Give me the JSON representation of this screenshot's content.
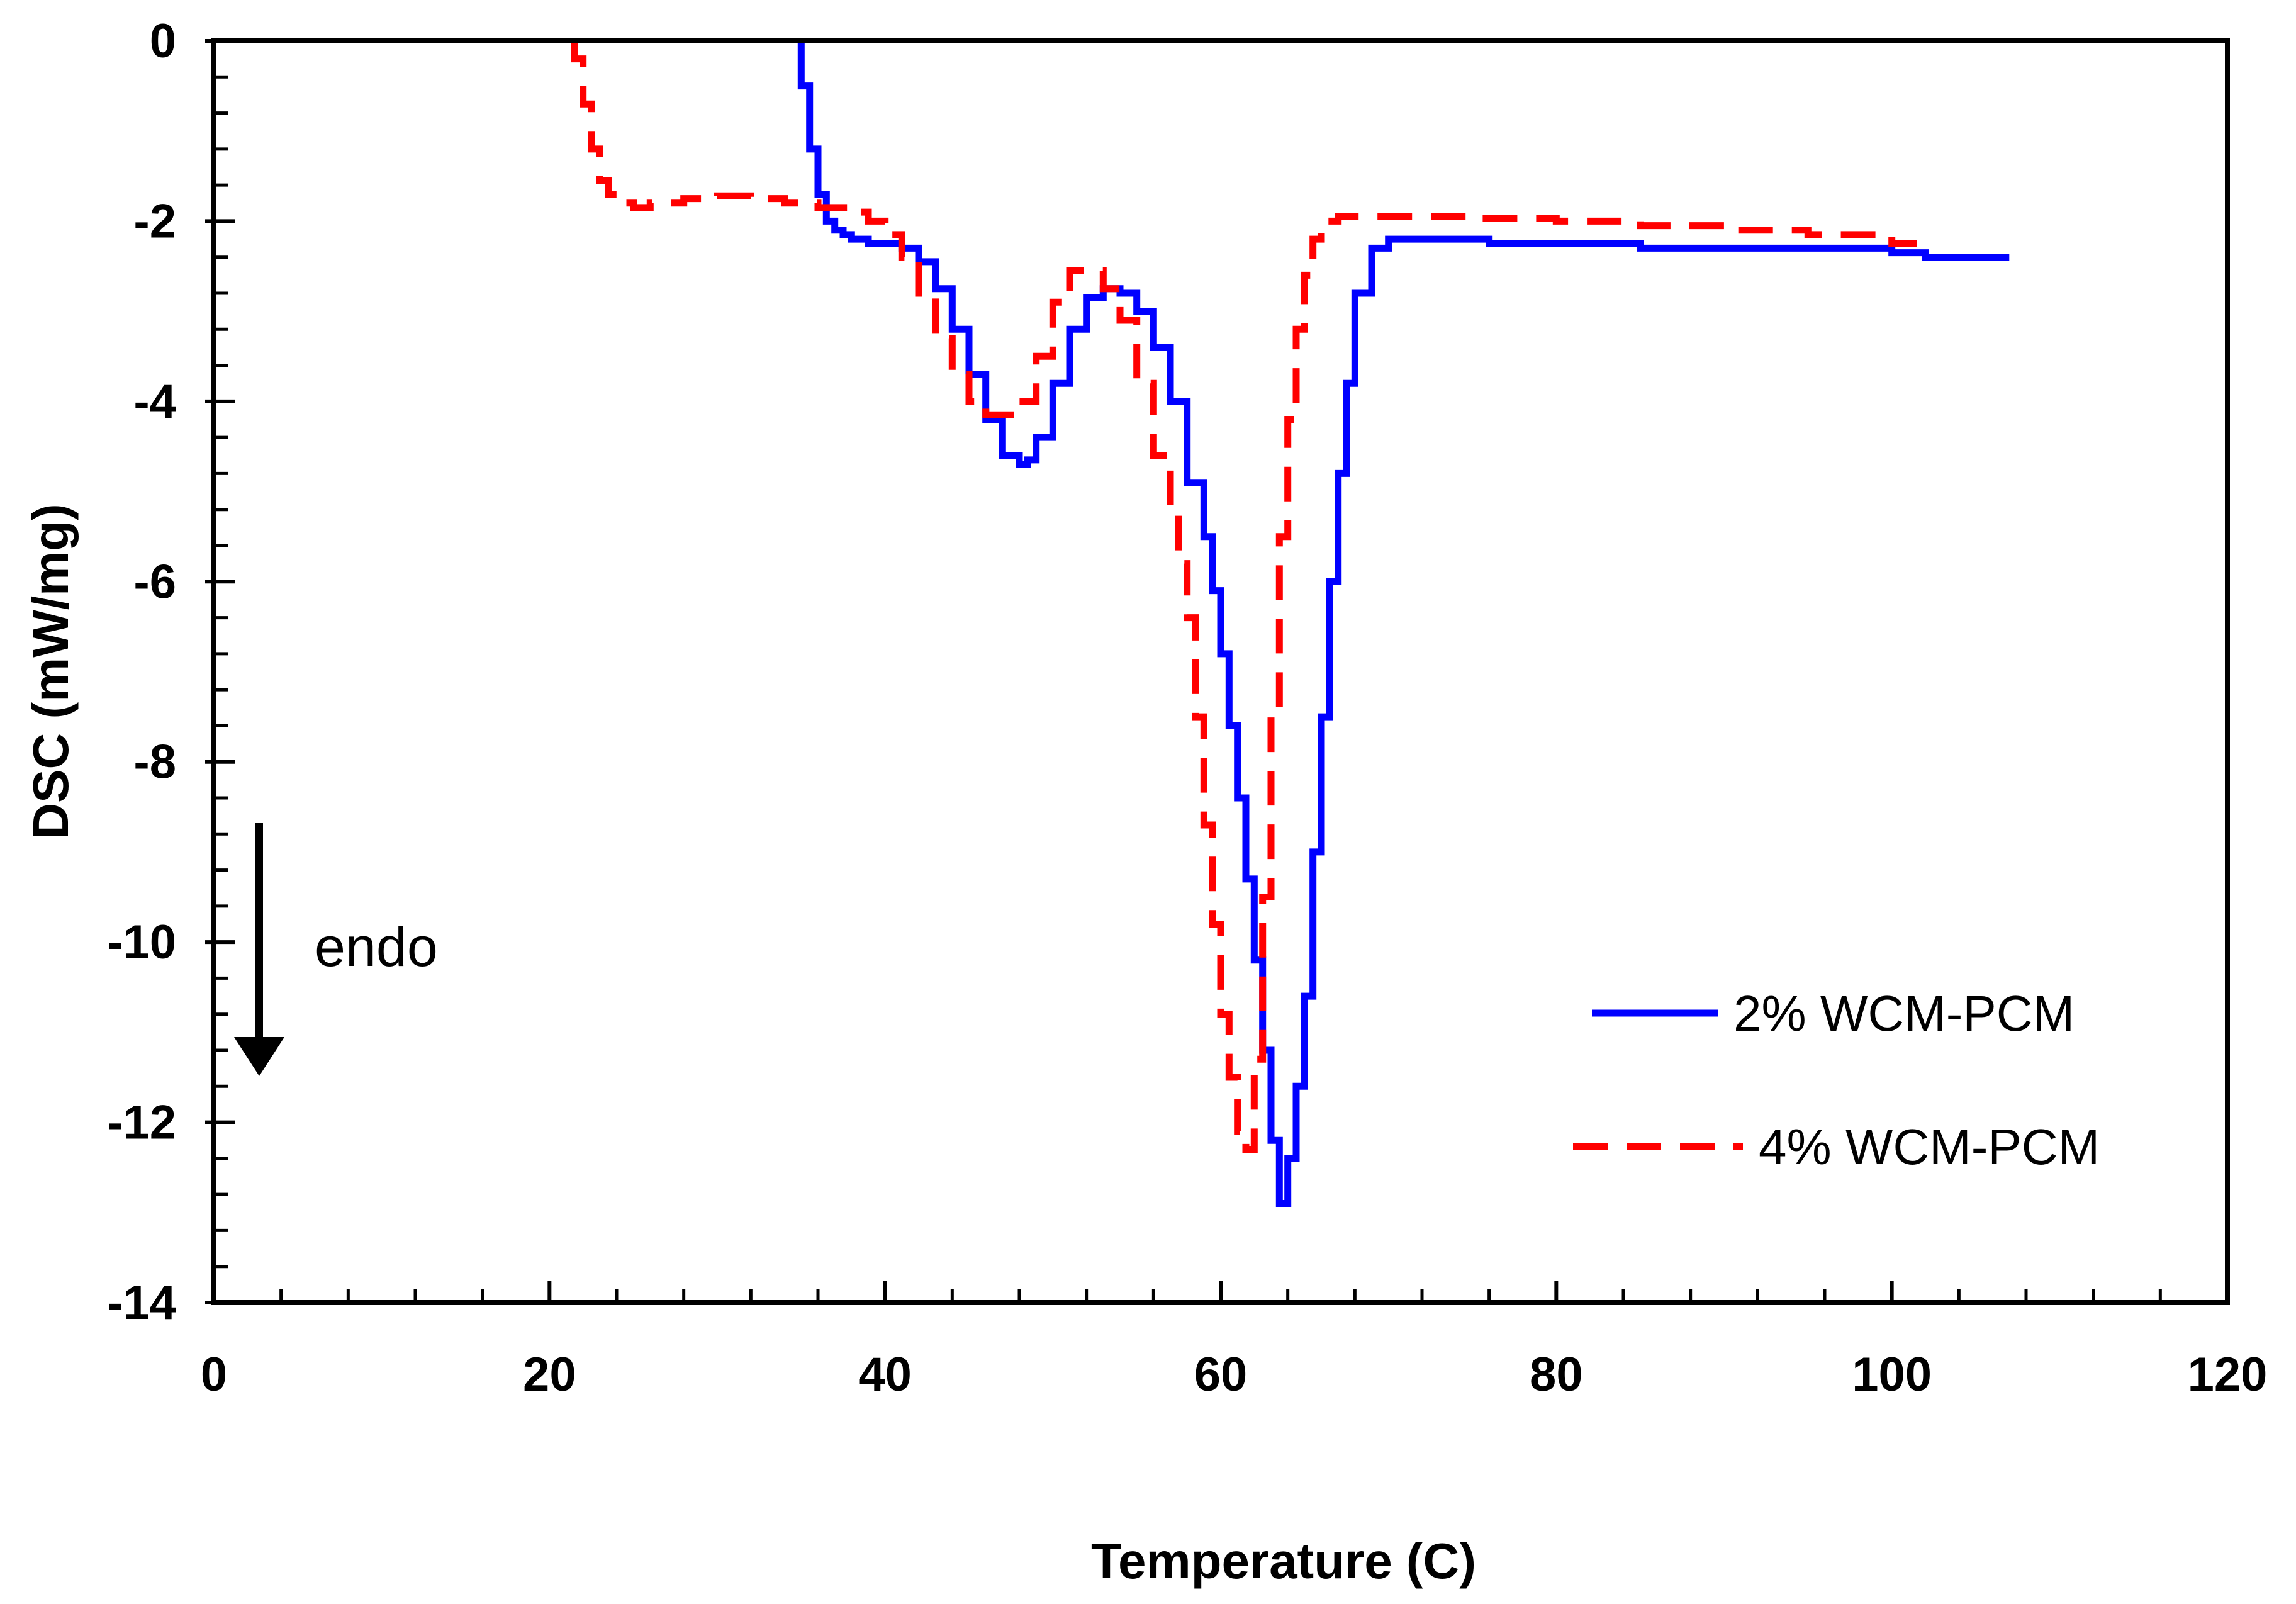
{
  "chart_data": {
    "type": "line",
    "title": "",
    "xlabel": "Temperature (C)",
    "ylabel": "DSC (mW/mg)",
    "xlim": [
      0,
      120
    ],
    "ylim": [
      -14,
      0
    ],
    "xticks": [
      0,
      20,
      40,
      60,
      80,
      100,
      120
    ],
    "yticks": [
      0,
      -2,
      -4,
      -6,
      -8,
      -10,
      -12,
      -14
    ],
    "xtick_labels": [
      "0",
      "20",
      "40",
      "60",
      "80",
      "100",
      "120"
    ],
    "ytick_labels": [
      "0",
      "-2",
      "-4",
      "-6",
      "-8",
      "-10",
      "-12",
      "-14"
    ],
    "x_minor_step": 4,
    "y_minor_step": 0.4,
    "grid": false,
    "legend_position": "lower-right",
    "annotation": {
      "text": "endo",
      "arrow": "down"
    },
    "series": [
      {
        "name": "2% WCM-PCM",
        "color": "#0000ff",
        "style": "solid",
        "x": [
          35.0,
          35.5,
          36.0,
          36.5,
          37.0,
          37.5,
          38.0,
          39.0,
          40.0,
          41.0,
          42.0,
          43.0,
          44.0,
          45.0,
          46.0,
          47.0,
          48.0,
          48.5,
          49.0,
          50.0,
          51.0,
          52.0,
          53.0,
          54.0,
          55.0,
          56.0,
          57.0,
          58.0,
          59.0,
          59.5,
          60.0,
          60.5,
          61.0,
          61.5,
          62.0,
          62.5,
          63.0,
          63.5,
          64.0,
          64.5,
          65.0,
          65.5,
          66.0,
          66.5,
          67.0,
          67.5,
          68.0,
          69.0,
          70.0,
          72.0,
          76.0,
          80.0,
          85.0,
          90.0,
          95.0,
          100.0,
          102.0,
          104.0,
          107.0
        ],
        "values": [
          0.0,
          -0.5,
          -1.2,
          -1.7,
          -2.0,
          -2.1,
          -2.15,
          -2.2,
          -2.25,
          -2.25,
          -2.3,
          -2.45,
          -2.75,
          -3.2,
          -3.7,
          -4.2,
          -4.6,
          -4.7,
          -4.65,
          -4.4,
          -3.8,
          -3.2,
          -2.85,
          -2.75,
          -2.8,
          -3.0,
          -3.4,
          -4.0,
          -4.9,
          -5.5,
          -6.1,
          -6.8,
          -7.6,
          -8.4,
          -9.3,
          -10.2,
          -11.2,
          -12.2,
          -12.9,
          -12.4,
          -11.6,
          -10.6,
          -9.0,
          -7.5,
          -6.0,
          -4.8,
          -3.8,
          -2.8,
          -2.3,
          -2.2,
          -2.2,
          -2.25,
          -2.25,
          -2.3,
          -2.3,
          -2.3,
          -2.35,
          -2.4,
          -2.4
        ]
      },
      {
        "name": "4% WCM-PCM",
        "color": "#ff0000",
        "style": "dashed",
        "x": [
          21.5,
          22.0,
          22.5,
          23.0,
          23.5,
          24.0,
          25.0,
          26.0,
          28.0,
          30.0,
          32.0,
          34.0,
          36.0,
          38.0,
          39.0,
          40.0,
          41.0,
          42.0,
          43.0,
          44.0,
          45.0,
          46.0,
          47.0,
          48.0,
          49.0,
          50.0,
          51.0,
          52.0,
          53.0,
          54.0,
          55.0,
          56.0,
          57.0,
          57.5,
          58.0,
          58.5,
          59.0,
          59.5,
          60.0,
          60.5,
          61.0,
          61.5,
          62.0,
          62.5,
          63.0,
          63.5,
          64.0,
          64.5,
          65.0,
          65.5,
          66.0,
          67.0,
          68.0,
          70.0,
          75.0,
          80.0,
          85.0,
          90.0,
          95.0,
          100.0,
          101.5
        ],
        "values": [
          0.0,
          -0.2,
          -0.7,
          -1.2,
          -1.55,
          -1.7,
          -1.8,
          -1.85,
          -1.8,
          -1.75,
          -1.72,
          -1.75,
          -1.8,
          -1.85,
          -1.9,
          -2.0,
          -2.15,
          -2.4,
          -2.8,
          -3.3,
          -3.7,
          -4.0,
          -4.15,
          -4.15,
          -4.0,
          -3.5,
          -2.9,
          -2.55,
          -2.55,
          -2.75,
          -3.1,
          -3.8,
          -4.6,
          -5.2,
          -5.8,
          -6.4,
          -7.5,
          -8.7,
          -9.8,
          -10.8,
          -11.5,
          -12.1,
          -12.3,
          -11.3,
          -9.5,
          -7.5,
          -5.5,
          -4.2,
          -3.2,
          -2.6,
          -2.2,
          -2.0,
          -1.95,
          -1.95,
          -1.95,
          -1.97,
          -2.0,
          -2.05,
          -2.1,
          -2.15,
          -2.25
        ]
      }
    ]
  }
}
